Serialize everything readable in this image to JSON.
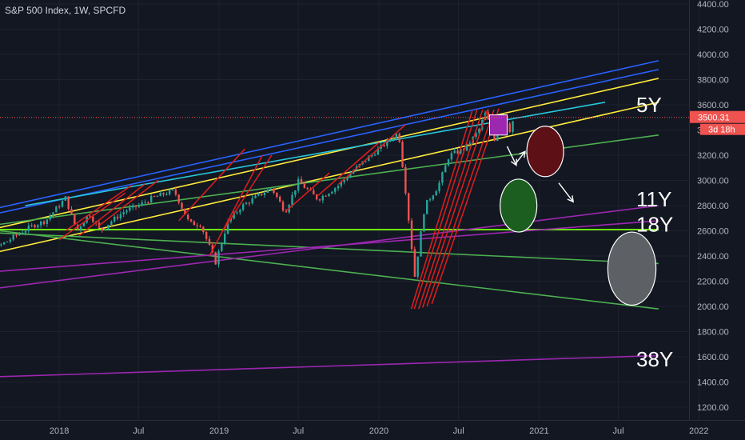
{
  "chart_data": {
    "type": "candlestick",
    "title": "S&P 500 Index, 1W, SPCFD",
    "xlabel": "",
    "ylabel": "",
    "ylim": [
      1100,
      4500
    ],
    "x_range": [
      "2017-05-01",
      "2022-05-01"
    ],
    "grid": true,
    "x_ticks": [
      {
        "date": "2017-07-01",
        "label": "Jul"
      },
      {
        "date": "2018-01-01",
        "label": "2018"
      },
      {
        "date": "2018-07-01",
        "label": "Jul"
      },
      {
        "date": "2019-01-01",
        "label": "2019"
      },
      {
        "date": "2019-07-01",
        "label": "Jul"
      },
      {
        "date": "2020-01-01",
        "label": "2020"
      },
      {
        "date": "2020-07-01",
        "label": "Jul"
      },
      {
        "date": "2021-01-01",
        "label": "2021"
      },
      {
        "date": "2021-07-01",
        "label": "Jul"
      },
      {
        "date": "2022-01-01",
        "label": "2022"
      }
    ],
    "y_ticks": [
      "1200.00",
      "1400.00",
      "1600.00",
      "1800.00",
      "2000.00",
      "2200.00",
      "2400.00",
      "2600.00",
      "2800.00",
      "3000.00",
      "3200.00",
      "3400.00",
      "3600.00",
      "3800.00",
      "4000.00",
      "4200.00",
      "4400.00"
    ],
    "last_price": {
      "value": 3500.31,
      "label": "3500.31",
      "countdown": "3d 18h"
    },
    "price_series": [
      [
        "2017-05-01",
        2380
      ],
      [
        "2017-06-01",
        2420
      ],
      [
        "2017-07-01",
        2470
      ],
      [
        "2017-08-01",
        2450
      ],
      [
        "2017-09-01",
        2510
      ],
      [
        "2017-10-01",
        2580
      ],
      [
        "2017-11-01",
        2640
      ],
      [
        "2017-12-01",
        2680
      ],
      [
        "2018-01-15",
        2860
      ],
      [
        "2018-02-10",
        2600
      ],
      [
        "2018-03-10",
        2740
      ],
      [
        "2018-04-05",
        2600
      ],
      [
        "2018-05-01",
        2680
      ],
      [
        "2018-06-01",
        2760
      ],
      [
        "2018-07-01",
        2800
      ],
      [
        "2018-08-01",
        2860
      ],
      [
        "2018-09-20",
        2920
      ],
      [
        "2018-10-25",
        2660
      ],
      [
        "2018-11-20",
        2650
      ],
      [
        "2018-12-24",
        2350
      ],
      [
        "2019-01-20",
        2660
      ],
      [
        "2019-02-20",
        2790
      ],
      [
        "2019-04-01",
        2880
      ],
      [
        "2019-05-01",
        2940
      ],
      [
        "2019-06-01",
        2750
      ],
      [
        "2019-07-01",
        2990
      ],
      [
        "2019-08-15",
        2850
      ],
      [
        "2019-10-01",
        2960
      ],
      [
        "2019-11-01",
        3070
      ],
      [
        "2019-12-15",
        3200
      ],
      [
        "2020-02-15",
        3380
      ],
      [
        "2020-03-01",
        2950
      ],
      [
        "2020-03-23",
        2240
      ],
      [
        "2020-04-15",
        2800
      ],
      [
        "2020-05-15",
        2950
      ],
      [
        "2020-06-10",
        3200
      ],
      [
        "2020-07-15",
        3250
      ],
      [
        "2020-08-15",
        3390
      ],
      [
        "2020-09-01",
        3540
      ],
      [
        "2020-09-20",
        3320
      ],
      [
        "2020-10-12",
        3530
      ],
      [
        "2020-10-26",
        3400
      ],
      [
        "2020-11-05",
        3500
      ]
    ],
    "annotations": [
      {
        "text": "5Y",
        "price": 3600
      },
      {
        "text": "11Y",
        "price": 2850
      },
      {
        "text": "18Y",
        "price": 2650
      },
      {
        "text": "38Y",
        "price": 1580
      }
    ],
    "trendlines": [
      {
        "color": "#2962ff",
        "from": [
          "2017-05-01",
          2700
        ],
        "to": [
          "2021-10-01",
          3950
        ]
      },
      {
        "color": "#2962ff",
        "from": [
          "2017-05-01",
          2660
        ],
        "to": [
          "2021-10-01",
          3880
        ]
      },
      {
        "color": "#ffeb3b",
        "from": [
          "2017-05-01",
          2540
        ],
        "to": [
          "2021-10-01",
          3810
        ]
      },
      {
        "color": "#ffeb3b",
        "from": [
          "2017-05-01",
          2350
        ],
        "to": [
          "2021-10-01",
          3620
        ]
      },
      {
        "color": "#26c6da",
        "from": [
          "2017-10-15",
          2800
        ],
        "to": [
          "2021-06-01",
          3620
        ]
      },
      {
        "color": "#4caf50",
        "from": [
          "2017-05-01",
          2610
        ],
        "to": [
          "2021-10-01",
          2610
        ]
      },
      {
        "color": "#76ff03",
        "from": [
          "2017-05-01",
          2610
        ],
        "to": [
          "2021-10-01",
          2610
        ]
      },
      {
        "color": "#4caf50",
        "from": [
          "2017-05-01",
          2600
        ],
        "to": [
          "2021-10-01",
          3360
        ]
      },
      {
        "color": "#4caf50",
        "from": [
          "2017-05-01",
          2600
        ],
        "to": [
          "2021-10-01",
          2340
        ]
      },
      {
        "color": "#4caf50",
        "from": [
          "2017-07-01",
          2620
        ],
        "to": [
          "2021-10-01",
          1980
        ]
      },
      {
        "color": "#9c27b0",
        "from": [
          "2017-05-01",
          2100
        ],
        "to": [
          "2021-10-01",
          2800
        ]
      },
      {
        "color": "#9c27b0",
        "from": [
          "2017-05-01",
          2250
        ],
        "to": [
          "2021-10-01",
          2680
        ]
      },
      {
        "color": "#9c27b0",
        "from": [
          "2017-05-01",
          1430
        ],
        "to": [
          "2021-10-01",
          1610
        ]
      }
    ],
    "red_channels": [
      [
        [
          "2018-01-01",
          2530
        ],
        [
          "2018-06-01",
          2900
        ]
      ],
      [
        [
          "2018-01-15",
          2600
        ],
        [
          "2018-06-15",
          2960
        ]
      ],
      [
        [
          "2018-02-15",
          2560
        ],
        [
          "2018-07-15",
          2970
        ]
      ],
      [
        [
          "2018-04-01",
          2640
        ],
        [
          "2018-08-15",
          3000
        ]
      ],
      [
        [
          "2018-10-01",
          2680
        ],
        [
          "2019-03-01",
          3250
        ]
      ],
      [
        [
          "2018-12-10",
          2400
        ],
        [
          "2019-04-10",
          3200
        ]
      ],
      [
        [
          "2019-01-10",
          2600
        ],
        [
          "2019-05-01",
          3200
        ]
      ],
      [
        [
          "2019-06-01",
          2750
        ],
        [
          "2019-09-10",
          3060
        ]
      ],
      [
        [
          "2019-08-15",
          2880
        ],
        [
          "2020-01-01",
          3300
        ]
      ],
      [
        [
          "2019-10-01",
          2970
        ],
        [
          "2020-03-01",
          3440
        ]
      ],
      [
        [
          "2020-03-15",
          1980
        ],
        [
          "2020-08-01",
          3550
        ]
      ],
      [
        [
          "2020-03-22",
          1980
        ],
        [
          "2020-08-12",
          3560
        ]
      ],
      [
        [
          "2020-04-01",
          1980
        ],
        [
          "2020-08-25",
          3560
        ]
      ],
      [
        [
          "2020-04-10",
          1990
        ],
        [
          "2020-09-05",
          3560
        ]
      ],
      [
        [
          "2020-04-20",
          2000
        ],
        [
          "2020-09-20",
          3560
        ]
      ],
      [
        [
          "2020-05-01",
          2020
        ],
        [
          "2020-10-01",
          3570
        ]
      ]
    ],
    "ellipses": [
      {
        "center": [
          "2020-11-15",
          2800
        ],
        "rx_days": 42,
        "ry_price": 210,
        "color": "#1b5e20",
        "stroke": "#ffffff"
      },
      {
        "center": [
          "2021-01-15",
          3230
        ],
        "rx_days": 42,
        "ry_price": 200,
        "color": "#5d1016",
        "stroke": "#ffffff"
      },
      {
        "center": [
          "2021-08-01",
          2300
        ],
        "rx_days": 55,
        "ry_price": 290,
        "color": "#5d6064",
        "stroke": "#ffffff"
      }
    ],
    "marker_box": {
      "from": [
        "2020-09-10",
        3360
      ],
      "to": [
        "2020-10-20",
        3520
      ]
    },
    "arrows": [
      {
        "from": [
          "2020-10-20",
          3270
        ],
        "to": [
          "2020-11-10",
          3120
        ]
      },
      {
        "from": [
          "2020-11-10",
          3140
        ],
        "to": [
          "2020-11-30",
          3230
        ]
      },
      {
        "from": [
          "2021-02-15",
          2980
        ],
        "to": [
          "2021-03-20",
          2830
        ]
      }
    ]
  }
}
